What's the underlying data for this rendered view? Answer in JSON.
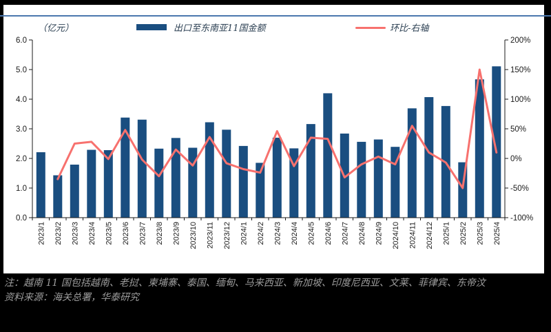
{
  "unit_label": "（亿元）",
  "legend": {
    "bar_label": "出口至东南亚11国金额",
    "line_label": "环比-右轴"
  },
  "notes": {
    "line1": "注：越南 11 国包括越南、老挝、柬埔寨、泰国、缅甸、马来西亚、新加坡、印度尼西亚、文莱、菲律宾、东帝汶",
    "line2": "资料来源：海关总署，华泰研究"
  },
  "colors": {
    "bar": "#1A4E80",
    "line": "#F7716E",
    "top_rule": "#4A77AD",
    "axis": "#1a1a1a",
    "note_text": "#9C9C9C",
    "panel_bg": "#FFFFFF",
    "page_bg": "#000000"
  },
  "chart_data": {
    "type": "bar",
    "subtype": "dual-axis bar + line",
    "title": "",
    "xlabel": "",
    "ylabel_left": "（亿元）",
    "ylabel_right": "%",
    "grid": false,
    "legend_position": "top",
    "categories": [
      "2023/1",
      "2023/2",
      "2023/3",
      "2023/4",
      "2023/5",
      "2023/6",
      "2023/7",
      "2023/8",
      "2023/9",
      "2023/10",
      "2023/11",
      "2023/12",
      "2024/1",
      "2024/2",
      "2024/3",
      "2024/4",
      "2024/5",
      "2024/6",
      "2024/7",
      "2024/8",
      "2024/9",
      "2024/10",
      "2024/11",
      "2024/12",
      "2025/1",
      "2025/2",
      "2025/3",
      "2025/4"
    ],
    "series": [
      {
        "name": "出口至东南亚11国金额",
        "type": "bar",
        "axis": "left",
        "unit": "亿元",
        "values": [
          2.21,
          1.43,
          1.79,
          2.29,
          2.28,
          3.38,
          3.31,
          2.33,
          2.69,
          2.36,
          3.22,
          2.97,
          2.42,
          1.85,
          2.7,
          2.34,
          3.16,
          4.2,
          2.84,
          2.56,
          2.64,
          2.39,
          3.69,
          4.07,
          3.77,
          1.87,
          4.67,
          5.11
        ]
      },
      {
        "name": "环比-右轴",
        "type": "line",
        "axis": "right",
        "unit": "%",
        "values": [
          null,
          -35,
          25,
          28,
          -1,
          48,
          -2,
          -30,
          15,
          -12,
          36,
          -8,
          -18,
          -24,
          46,
          -13,
          35,
          33,
          -32,
          -10,
          3,
          -10,
          55,
          10,
          -7,
          -50,
          150,
          10
        ]
      }
    ],
    "left_axis": {
      "min": 0,
      "max": 6,
      "tick_step": 1,
      "tick_labels": [
        "0.0",
        "1.0",
        "2.0",
        "3.0",
        "4.0",
        "5.0",
        "6.0"
      ]
    },
    "right_axis": {
      "min": -100,
      "max": 200,
      "tick_step": 50,
      "tick_labels": [
        "-100%",
        "-50%",
        "0%",
        "50%",
        "100%",
        "150%",
        "200%"
      ]
    }
  }
}
